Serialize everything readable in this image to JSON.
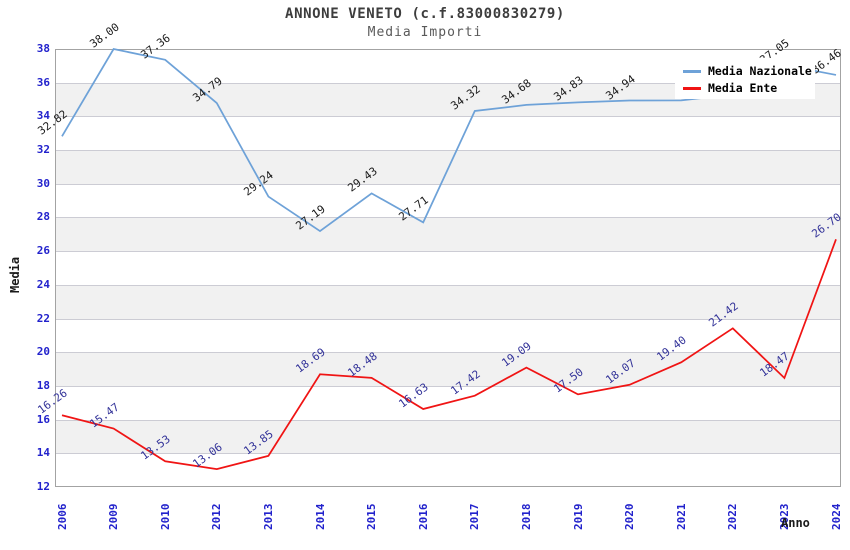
{
  "chart_data": {
    "type": "line",
    "title": "ANNONE VENETO (c.f.83000830279)",
    "subtitle": "Media Importi",
    "xlabel": "Anno",
    "ylabel": "Media",
    "categories": [
      "2006",
      "2009",
      "2010",
      "2012",
      "2013",
      "2014",
      "2015",
      "2016",
      "2017",
      "2018",
      "2019",
      "2020",
      "2021",
      "2022",
      "2023",
      "2024"
    ],
    "series": [
      {
        "name": "Media Nazionale",
        "color": "#6ea2d8",
        "label_color": "#1b1b1b",
        "values": [
          32.82,
          38.0,
          37.36,
          34.79,
          29.24,
          27.19,
          29.43,
          27.71,
          34.32,
          34.68,
          34.83,
          34.94,
          34.95,
          35.3,
          37.05,
          36.46
        ],
        "point_labels": [
          "32.82",
          "38.00",
          "37.36",
          "34.79",
          "29.24",
          "27.19",
          "29.43",
          "27.71",
          "34.32",
          "34.68",
          "34.83",
          "34.94",
          null,
          null,
          "37.05",
          "36.46"
        ]
      },
      {
        "name": "Media Ente",
        "color": "#f01414",
        "label_color": "#333399",
        "values": [
          16.26,
          15.47,
          13.53,
          13.06,
          13.85,
          18.69,
          18.48,
          16.63,
          17.42,
          19.09,
          17.5,
          18.07,
          19.4,
          21.42,
          18.47,
          26.7
        ],
        "point_labels": [
          "16.26",
          "15.47",
          "13.53",
          "13.06",
          "13.85",
          "18.69",
          "18.48",
          "16.63",
          "17.42",
          "19.09",
          "17.50",
          "18.07",
          "19.40",
          "21.42",
          "18.47",
          "26.70"
        ]
      }
    ],
    "ylim": [
      12,
      38
    ],
    "ytick_step": 2,
    "grid": true,
    "band_color": "#f1f1f1",
    "grid_color": "#ccccd4",
    "tick_label_color": "#2222cc",
    "legend_position": "top-right"
  }
}
